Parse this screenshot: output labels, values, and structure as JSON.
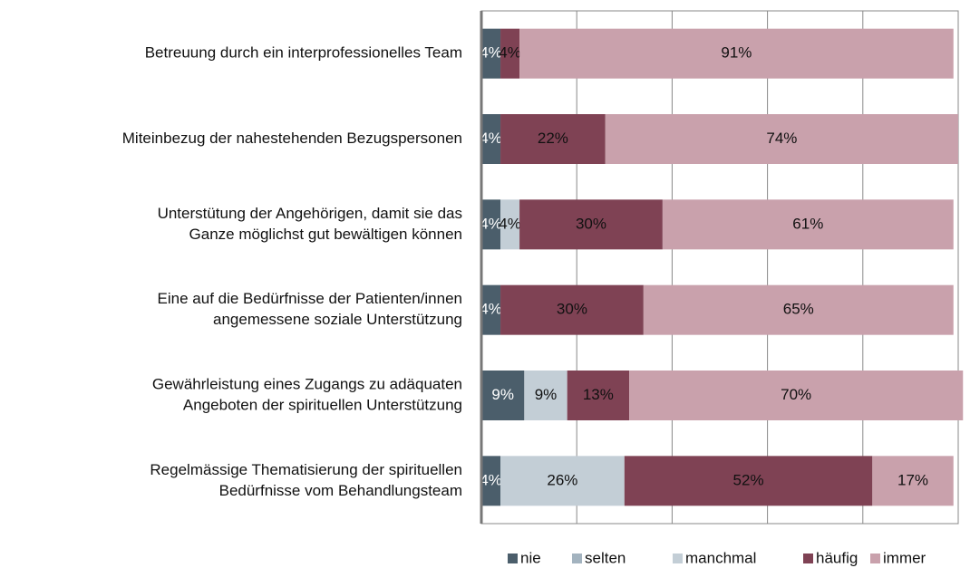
{
  "chart_data": {
    "type": "stacked_barh",
    "categories": [
      [
        "Betreuung durch ein interprofessionelles Team"
      ],
      [
        "Miteinbezug der nahestehenden Bezugspersonen"
      ],
      [
        "Unterstütung der Angehörigen, damit sie das",
        "Ganze möglichst gut bewältigen können"
      ],
      [
        "Eine auf die Bedürfnisse der Patienten/innen",
        "angemessene soziale Unterstützung"
      ],
      [
        "Gewährleistung eines Zugangs zu adäquaten",
        "Angeboten der spirituellen Unterstützung"
      ],
      [
        "Regelmässige Thematisierung der spirituellen",
        "Bedürfnisse vom Behandlungsteam"
      ]
    ],
    "series": [
      {
        "name": "nie",
        "color": "#4b5e6b",
        "values": [
          4,
          4,
          4,
          4,
          9,
          4
        ],
        "value_labels": [
          "4%",
          "4%",
          "4%",
          "4%",
          "9%",
          "4%"
        ]
      },
      {
        "name": "selten",
        "color": "#a3b3bf",
        "values": [
          0,
          0,
          0,
          0,
          0,
          0
        ],
        "value_labels": [
          null,
          null,
          null,
          null,
          null,
          null
        ]
      },
      {
        "name": "manchmal",
        "color": "#c3ced6",
        "values": [
          0,
          0,
          4,
          0,
          9,
          26
        ],
        "value_labels": [
          null,
          null,
          "4%",
          null,
          "9%",
          "26%"
        ]
      },
      {
        "name": "häufig",
        "color": "#7f4254",
        "values": [
          4,
          22,
          30,
          30,
          13,
          52
        ],
        "value_labels": [
          "4%",
          "22%",
          "30%",
          "30%",
          "13%",
          "52%"
        ]
      },
      {
        "name": "immer",
        "color": "#c9a1ac",
        "values": [
          91,
          74,
          61,
          65,
          70,
          17
        ],
        "value_labels": [
          "91%",
          "74%",
          "61%",
          "65%",
          "70%",
          "17%"
        ]
      }
    ],
    "xlim": [
      0,
      100
    ],
    "xticks": [
      0,
      20,
      40,
      60,
      80,
      100
    ],
    "grid": true
  }
}
